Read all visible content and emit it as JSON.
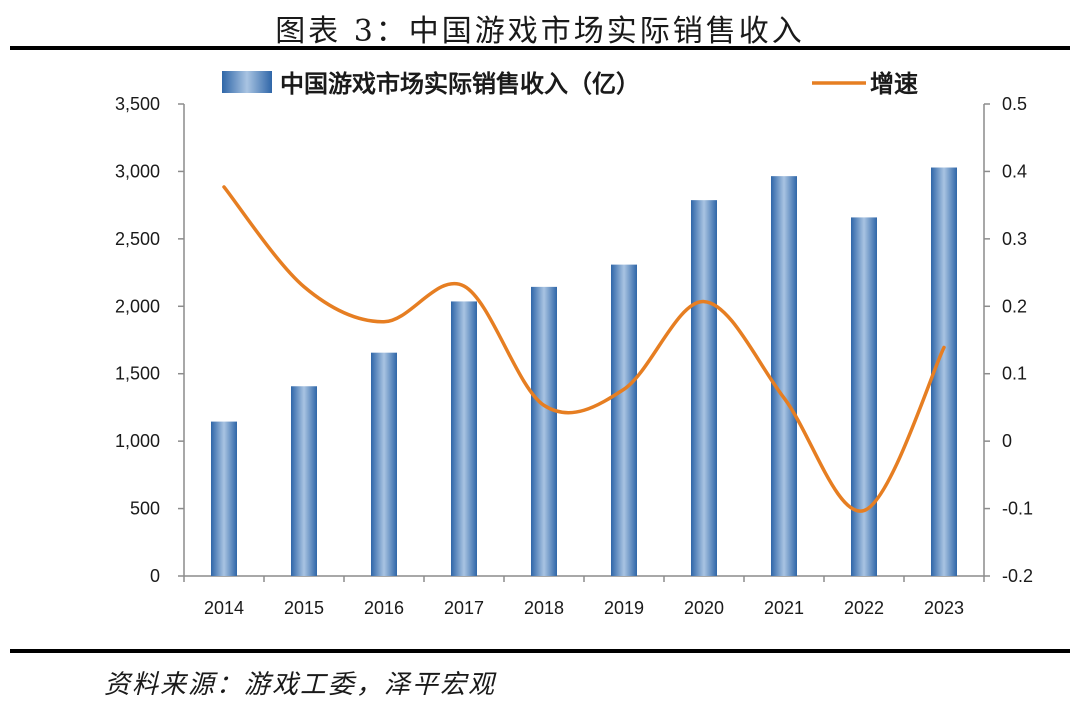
{
  "title": "图表 3：中国游戏市场实际销售收入",
  "source": "资料来源：游戏工委，泽平宏观",
  "chart_data": {
    "type": "bar",
    "categories": [
      "2014",
      "2015",
      "2016",
      "2017",
      "2018",
      "2019",
      "2020",
      "2021",
      "2022",
      "2023"
    ],
    "series": [
      {
        "name": "中国游戏市场实际销售收入（亿）",
        "type": "bar",
        "axis": "left",
        "color": "#4f81bd",
        "values": [
          1145,
          1407,
          1656,
          2036,
          2144,
          2309,
          2787,
          2965,
          2659,
          3029
        ]
      },
      {
        "name": "增速",
        "type": "line",
        "axis": "right",
        "color": "#e67e22",
        "values": [
          0.377,
          0.229,
          0.177,
          0.23,
          0.053,
          0.077,
          0.207,
          0.064,
          -0.103,
          0.139
        ]
      }
    ],
    "y_left": {
      "min": 0,
      "max": 3500,
      "ticks": [
        "0",
        "500",
        "1,000",
        "1,500",
        "2,000",
        "2,500",
        "3,000",
        "3,500"
      ]
    },
    "y_right": {
      "min": -0.2,
      "max": 0.5,
      "ticks": [
        "-0.2",
        "-0.1",
        "0",
        "0.1",
        "0.2",
        "0.3",
        "0.4",
        "0.5"
      ]
    },
    "legend_position": "top",
    "grid": false
  }
}
